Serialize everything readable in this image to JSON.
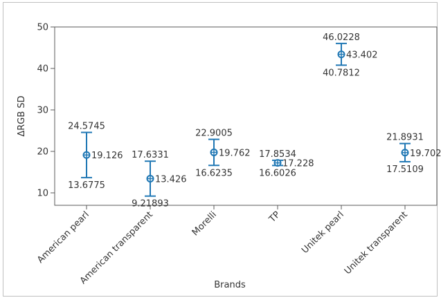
{
  "chart_data": {
    "type": "errorbar",
    "xlabel": "Brands",
    "ylabel": "ΔRGB SD",
    "ylim": [
      7,
      50
    ],
    "yticks": [
      10,
      20,
      30,
      40,
      50
    ],
    "grid": false,
    "categories": [
      "American pearl",
      "American transparent",
      "Morelli",
      "TP",
      "Unitek pearl",
      "Unitek transparent"
    ],
    "means": [
      19.126,
      13.426,
      19.762,
      17.228,
      43.402,
      19.702
    ],
    "upper": [
      24.5745,
      17.6331,
      22.9005,
      17.8534,
      46.0228,
      21.8931
    ],
    "lower": [
      13.6775,
      9.21893,
      16.6235,
      16.6026,
      40.7812,
      17.5109
    ],
    "labels": {
      "mean": [
        "19.126",
        "13.426",
        "19.762",
        "17.228",
        "43.402",
        "19.702"
      ],
      "upper": [
        "24.5745",
        "17.6331",
        "22.9005",
        "17.8534",
        "46.0228",
        "21.8931"
      ],
      "lower": [
        "13.6775",
        "9.21893",
        "16.6235",
        "16.6026",
        "40.7812",
        "17.5109"
      ]
    },
    "colors": {
      "series": "#1f77b4",
      "axis": "#595959",
      "text": "#333333"
    }
  }
}
